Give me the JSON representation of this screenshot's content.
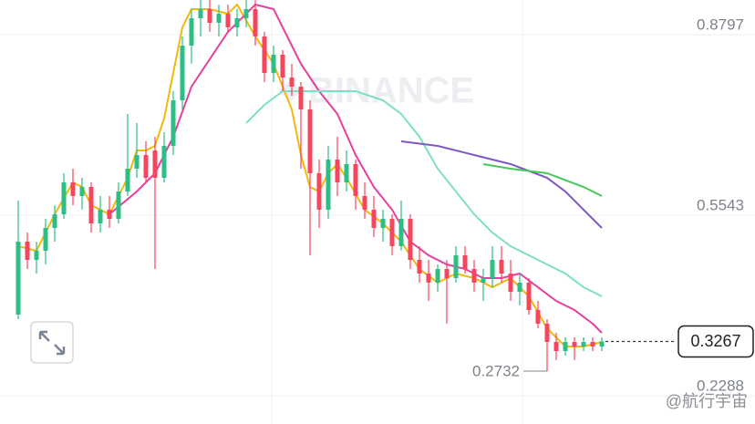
{
  "chart_data": {
    "type": "candlestick",
    "ylim": [
      0.2026,
      0.9421
    ],
    "yticks": [
      0.8797,
      0.5543,
      0.2288
    ],
    "grid": true,
    "up_color": "#2ebd85",
    "down_color": "#f6465d",
    "open": [
      0.3751,
      0.5066,
      0.4737,
      0.4902,
      0.5313,
      0.5559,
      0.6134,
      0.5888,
      0.6052,
      0.5395,
      0.5641,
      0.5477,
      0.597,
      0.6381,
      0.6627,
      0.6709,
      0.6216,
      0.6792,
      0.7613,
      0.8599,
      0.9092,
      0.9257,
      0.901,
      0.9174,
      0.8928,
      0.9092,
      0.9257,
      0.8764,
      0.8106,
      0.8435,
      0.8024,
      0.786,
      0.7449,
      0.6299,
      0.5641,
      0.6545,
      0.6134,
      0.6463,
      0.5888,
      0.5641,
      0.5313,
      0.5477,
      0.4984,
      0.5477,
      0.4737,
      0.4491,
      0.4327,
      0.4573,
      0.4409,
      0.482,
      0.4573,
      0.4327,
      0.4409,
      0.4737,
      0.4491,
      0.4162,
      0.4327,
      0.3834,
      0.3587,
      0.3258,
      0.3094,
      0.3258,
      0.3176,
      0.3258,
      0.3176
    ],
    "high": [
      0.5806,
      0.523,
      0.5066,
      0.5477,
      0.5723,
      0.6299,
      0.6381,
      0.6216,
      0.6134,
      0.5888,
      0.5888,
      0.6134,
      0.7367,
      0.7202,
      0.6874,
      0.6956,
      0.7038,
      0.7778,
      0.8764,
      0.9257,
      0.9421,
      0.9421,
      0.9339,
      0.9339,
      0.9257,
      0.9421,
      0.9421,
      0.8846,
      0.8599,
      0.8517,
      0.8271,
      0.7942,
      0.7613,
      0.6545,
      0.6792,
      0.6956,
      0.6709,
      0.6545,
      0.6134,
      0.5888,
      0.5641,
      0.5559,
      0.5806,
      0.5559,
      0.4984,
      0.4737,
      0.4655,
      0.4737,
      0.4984,
      0.4984,
      0.4737,
      0.4573,
      0.4984,
      0.4984,
      0.4737,
      0.4491,
      0.4409,
      0.3998,
      0.3669,
      0.3423,
      0.3341,
      0.3341,
      0.3341,
      0.3341,
      0.3341
    ],
    "low": [
      0.3669,
      0.4573,
      0.4491,
      0.4655,
      0.5066,
      0.5477,
      0.5723,
      0.5641,
      0.523,
      0.523,
      0.5313,
      0.5395,
      0.5888,
      0.6216,
      0.6134,
      0.4573,
      0.6134,
      0.6627,
      0.7449,
      0.8271,
      0.8764,
      0.8846,
      0.8764,
      0.8846,
      0.8764,
      0.8928,
      0.8599,
      0.7942,
      0.7942,
      0.7778,
      0.7695,
      0.6381,
      0.482,
      0.5313,
      0.5477,
      0.5888,
      0.597,
      0.5641,
      0.5477,
      0.5148,
      0.5066,
      0.482,
      0.4902,
      0.4573,
      0.4327,
      0.3998,
      0.4162,
      0.3587,
      0.4327,
      0.4491,
      0.4162,
      0.3998,
      0.4244,
      0.4327,
      0.3998,
      0.3916,
      0.3751,
      0.3505,
      0.2732,
      0.293,
      0.3012,
      0.293,
      0.3094,
      0.3094,
      0.3094
    ],
    "close": [
      0.5066,
      0.4737,
      0.4902,
      0.5313,
      0.5559,
      0.6134,
      0.5888,
      0.6052,
      0.5395,
      0.5641,
      0.5477,
      0.597,
      0.6381,
      0.6627,
      0.6216,
      0.6216,
      0.6792,
      0.7613,
      0.8599,
      0.9092,
      0.9257,
      0.901,
      0.9174,
      0.8928,
      0.9092,
      0.9257,
      0.8764,
      0.8106,
      0.8435,
      0.8024,
      0.786,
      0.7449,
      0.6299,
      0.5641,
      0.6545,
      0.6134,
      0.6463,
      0.5888,
      0.5641,
      0.5313,
      0.5477,
      0.4984,
      0.5477,
      0.4737,
      0.4491,
      0.4327,
      0.4573,
      0.4409,
      0.482,
      0.4573,
      0.4327,
      0.4409,
      0.4737,
      0.4491,
      0.4162,
      0.4327,
      0.3834,
      0.3587,
      0.3258,
      0.3094,
      0.3258,
      0.3176,
      0.3258,
      0.3176,
      0.3267
    ],
    "series": [
      {
        "color": "#f0b90b",
        "x": [
          0,
          2,
          4,
          6,
          7,
          8,
          10,
          12,
          13,
          14,
          15,
          16,
          17,
          18,
          19,
          21,
          23,
          24,
          26,
          28,
          29,
          30,
          31,
          32,
          33,
          34,
          35,
          36,
          38,
          40,
          42,
          44,
          46,
          48,
          50,
          52,
          54,
          56,
          58,
          60,
          62,
          64
        ],
        "values": [
          0.4984,
          0.4902,
          0.5559,
          0.6134,
          0.6052,
          0.5723,
          0.5559,
          0.6216,
          0.6709,
          0.6709,
          0.6792,
          0.7285,
          0.8106,
          0.8928,
          0.9257,
          0.9257,
          0.9174,
          0.9339,
          0.8764,
          0.8271,
          0.786,
          0.7449,
          0.6627,
          0.6052,
          0.597,
          0.6299,
          0.6463,
          0.6216,
          0.5641,
          0.5395,
          0.5066,
          0.4573,
          0.4327,
          0.4491,
          0.4409,
          0.4244,
          0.4409,
          0.408,
          0.3505,
          0.3176,
          0.3176,
          0.3258
        ]
      },
      {
        "color": "#e6409f",
        "x": [
          10,
          13,
          15,
          17,
          19,
          21,
          23,
          25,
          26,
          28,
          29,
          31,
          33,
          35,
          37,
          39,
          41,
          43,
          45,
          47,
          49,
          51,
          53,
          55,
          57,
          59,
          61,
          63,
          64
        ],
        "values": [
          0.5559,
          0.597,
          0.6299,
          0.6956,
          0.786,
          0.8353,
          0.8846,
          0.9174,
          0.9339,
          0.9257,
          0.8928,
          0.8271,
          0.7778,
          0.7367,
          0.6627,
          0.6052,
          0.5641,
          0.5066,
          0.482,
          0.4655,
          0.4573,
          0.4409,
          0.4409,
          0.4491,
          0.4244,
          0.3998,
          0.3834,
          0.3587,
          0.3423
        ]
      },
      {
        "color": "#7ee0c3",
        "x": [
          25,
          27,
          29,
          32,
          34,
          37,
          40,
          42,
          44,
          46,
          48,
          50,
          52,
          54,
          56,
          58,
          60,
          62,
          64
        ],
        "values": [
          0.7202,
          0.7531,
          0.7778,
          0.7778,
          0.7778,
          0.7778,
          0.7613,
          0.7367,
          0.6956,
          0.6381,
          0.597,
          0.5559,
          0.523,
          0.4984,
          0.482,
          0.4655,
          0.4491,
          0.4244,
          0.408
        ]
      },
      {
        "color": "#7e57c2",
        "x": [
          42,
          46,
          50,
          54,
          58,
          60,
          62,
          64
        ],
        "values": [
          0.6874,
          0.6792,
          0.6627,
          0.6463,
          0.6216,
          0.597,
          0.5641,
          0.5313
        ]
      },
      {
        "color": "#44c95a",
        "x": [
          51,
          54,
          58,
          62,
          64
        ],
        "values": [
          0.6463,
          0.6381,
          0.6299,
          0.6052,
          0.5888
        ]
      }
    ],
    "current_price": 0.3267,
    "low_label": 0.2732
  },
  "watermark": "BINANCE",
  "credit": "@航行宇宙"
}
